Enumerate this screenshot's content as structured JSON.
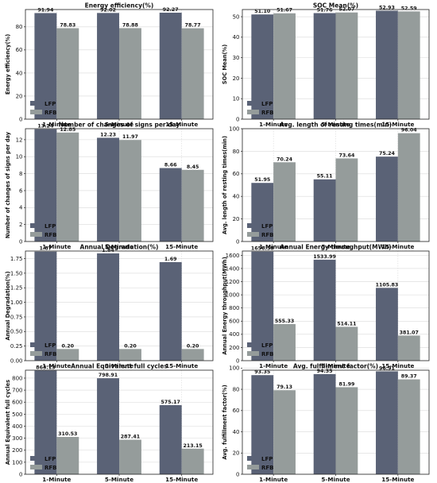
{
  "chart_data": [
    {
      "type": "bar",
      "title": "Energy efficiency(%)",
      "ylabel": "Energy efficiency(%)",
      "categories": [
        "1-Minute",
        "5-Minute",
        "15-Minute"
      ],
      "ylim": [
        0,
        95
      ],
      "yticks": [
        0,
        20,
        40,
        60,
        80
      ],
      "series": [
        {
          "name": "LFP",
          "values": [
            91.94,
            92.02,
            92.27
          ],
          "labels": [
            "91.94",
            "92.02",
            "92.27"
          ]
        },
        {
          "name": "RFB",
          "values": [
            78.83,
            78.88,
            78.77
          ],
          "labels": [
            "78.83",
            "78.88",
            "78.77"
          ]
        }
      ],
      "legend": "bottom-left",
      "grid": true
    },
    {
      "type": "bar",
      "title": "SOC Mean(%)",
      "ylabel": "SOC Mean(%)",
      "categories": [
        "1-Minute",
        "5-Minute",
        "15-Minute"
      ],
      "ylim": [
        0,
        53.5
      ],
      "yticks": [
        0,
        10,
        20,
        30,
        40,
        50
      ],
      "series": [
        {
          "name": "LFP",
          "values": [
            51.1,
            51.76,
            52.93
          ],
          "labels": [
            "51.10",
            "51.76",
            "52.93"
          ]
        },
        {
          "name": "RFB",
          "values": [
            51.67,
            52.07,
            52.59
          ],
          "labels": [
            "51.67",
            "52.07",
            "52.59"
          ]
        }
      ],
      "legend": "bottom-left",
      "grid": true
    },
    {
      "type": "bar",
      "title": "Number of changes of signs per day",
      "ylabel": "Number of changes of signs per day",
      "categories": [
        "1-Minute",
        "5-Minute",
        "15-Minute"
      ],
      "ylim": [
        0,
        13.3
      ],
      "yticks": [
        0,
        2,
        4,
        6,
        8,
        10,
        12
      ],
      "series": [
        {
          "name": "LFP",
          "values": [
            13.24,
            12.23,
            8.66
          ],
          "labels": [
            "13.24",
            "12.23",
            "8.66"
          ]
        },
        {
          "name": "RFB",
          "values": [
            12.85,
            11.97,
            8.45
          ],
          "labels": [
            "12.85",
            "11.97",
            "8.45"
          ]
        }
      ],
      "legend": "bottom-left",
      "grid": true
    },
    {
      "type": "bar",
      "title": "Avg. length of resting times(min)",
      "ylabel": "Avg. length of resting times(min)",
      "categories": [
        "1-Minute",
        "5-Minute",
        "15-Minute"
      ],
      "ylim": [
        0,
        100
      ],
      "yticks": [
        0,
        20,
        40,
        60,
        80,
        100
      ],
      "series": [
        {
          "name": "LFP",
          "values": [
            51.95,
            55.11,
            75.24
          ],
          "labels": [
            "51.95",
            "55.11",
            "75.24"
          ]
        },
        {
          "name": "RFB",
          "values": [
            70.24,
            73.64,
            96.04
          ],
          "labels": [
            "70.24",
            "73.64",
            "96.04"
          ]
        }
      ],
      "legend": "bottom-left",
      "grid": true
    },
    {
      "type": "bar",
      "title": "Annual Degradation(%)",
      "ylabel": "Annual Degradation(%)",
      "categories": [
        "1-Minute",
        "5-Minute",
        "15-Minute"
      ],
      "ylim": [
        0,
        1.88
      ],
      "yticks": [
        0.0,
        0.25,
        0.5,
        0.75,
        1.0,
        1.25,
        1.5,
        1.75
      ],
      "ytick_labels": [
        "0.00",
        "0.25",
        "0.50",
        "0.75",
        "1.00",
        "1.25",
        "1.50",
        "1.75"
      ],
      "series": [
        {
          "name": "LFP",
          "values": [
            1.87,
            1.84,
            1.69
          ],
          "labels": [
            "1.87",
            "1.84",
            "1.69"
          ]
        },
        {
          "name": "RFB",
          "values": [
            0.2,
            0.2,
            0.2
          ],
          "labels": [
            "0.20",
            "0.20",
            "0.20"
          ]
        }
      ],
      "legend": "bottom-left",
      "grid": true
    },
    {
      "type": "bar",
      "title": "Annual Energy throughput(MWh)",
      "ylabel": "Annual Energy throughput(MWh)",
      "categories": [
        "1-Minute",
        "5-Minute",
        "15-Minute"
      ],
      "ylim": [
        0,
        1665
      ],
      "yticks": [
        0,
        200,
        400,
        600,
        800,
        1000,
        1200,
        1400,
        1600
      ],
      "series": [
        {
          "name": "LFP",
          "values": [
            1656.58,
            1533.99,
            1105.83
          ],
          "labels": [
            "1656.58",
            "1533.99",
            "1105.83"
          ]
        },
        {
          "name": "RFB",
          "values": [
            555.33,
            514.11,
            381.07
          ],
          "labels": [
            "555.33",
            "514.11",
            "381.07"
          ]
        }
      ],
      "legend": "bottom-left",
      "grid": true
    },
    {
      "type": "bar",
      "title": "Annual Equivalent full cycles",
      "ylabel": "Annual Equivalent full cycles",
      "categories": [
        "1-Minute",
        "5-Minute",
        "15-Minute"
      ],
      "ylim": [
        0,
        866
      ],
      "yticks": [
        0,
        100,
        200,
        300,
        400,
        500,
        600,
        700,
        800
      ],
      "series": [
        {
          "name": "LFP",
          "values": [
            863.13,
            798.91,
            575.17
          ],
          "labels": [
            "863.13",
            "798.91",
            "575.17"
          ]
        },
        {
          "name": "RFB",
          "values": [
            310.53,
            287.41,
            213.15
          ],
          "labels": [
            "310.53",
            "287.41",
            "213.15"
          ]
        }
      ],
      "legend": "bottom-left",
      "grid": true
    },
    {
      "type": "bar",
      "title": "Avg. fulfillment factor(%)",
      "ylabel": "Avg. fulfillment factor(%)",
      "categories": [
        "1-Minute",
        "5-Minute",
        "15-Minute"
      ],
      "ylim": [
        0,
        98
      ],
      "yticks": [
        0,
        20,
        40,
        60,
        80,
        100
      ],
      "series": [
        {
          "name": "LFP",
          "values": [
            93.35,
            94.35,
            96.91
          ],
          "labels": [
            "93.35",
            "94.35",
            "96.91"
          ]
        },
        {
          "name": "RFB",
          "values": [
            79.13,
            81.99,
            89.37
          ],
          "labels": [
            "79.13",
            "81.99",
            "89.37"
          ]
        }
      ],
      "legend": "bottom-left",
      "grid": true
    }
  ],
  "colors": {
    "LFP": "#5a6276",
    "RFB": "#959c9b",
    "grid": "#d9d9d9",
    "axes": "#222222"
  }
}
